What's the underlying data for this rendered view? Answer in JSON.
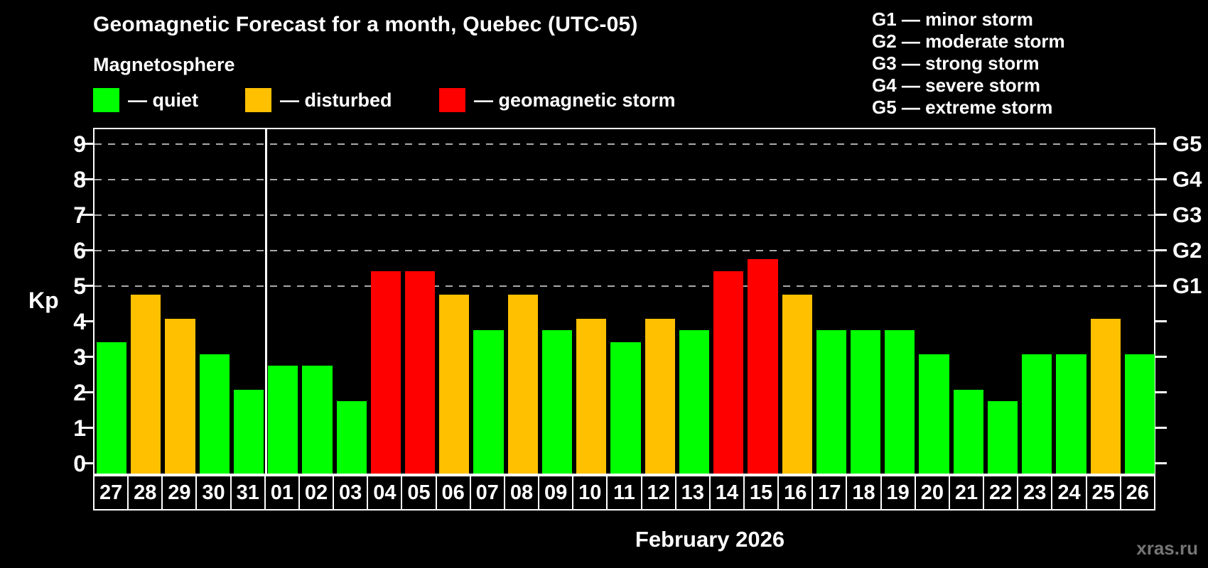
{
  "header": {
    "title": "Geomagnetic Forecast for a month, Quebec (UTC-05)",
    "subtitle": "Magnetosphere"
  },
  "legend": {
    "items": [
      {
        "name": "quiet",
        "label": "— quiet",
        "color": "#00ff00"
      },
      {
        "name": "disturbed",
        "label": "— disturbed",
        "color": "#ffc000"
      },
      {
        "name": "storm",
        "label": "— geomagnetic storm",
        "color": "#ff0000"
      }
    ]
  },
  "storm_scale_legend": {
    "items": [
      "G1 — minor storm",
      "G2 — moderate storm",
      "G3 — strong storm",
      "G4 — severe storm",
      "G5 — extreme storm"
    ]
  },
  "footer": {
    "month_label": "February 2026",
    "watermark": "xras.ru"
  },
  "chart_data": {
    "type": "bar",
    "title": "Geomagnetic Forecast for a month, Quebec (UTC-05)",
    "ylabel": "Kp",
    "xlabel": "February 2026",
    "ylim": [
      -0.4,
      9.4
    ],
    "yticks": [
      0,
      1,
      2,
      3,
      4,
      5,
      6,
      7,
      8,
      9
    ],
    "grid": "dashed horizontal lines at Kp 5-9 (G1-G5 levels)",
    "gridlines_kp": [
      5,
      6,
      7,
      8,
      9
    ],
    "right_axis_labels": [
      {
        "label": "G1",
        "kp": 5
      },
      {
        "label": "G2",
        "kp": 6
      },
      {
        "label": "G3",
        "kp": 7
      },
      {
        "label": "G4",
        "kp": 8
      },
      {
        "label": "G5",
        "kp": 9
      }
    ],
    "month_separator_after_index": 4,
    "categories": [
      "27",
      "28",
      "29",
      "30",
      "31",
      "01",
      "02",
      "03",
      "04",
      "05",
      "06",
      "07",
      "08",
      "09",
      "10",
      "11",
      "12",
      "13",
      "14",
      "15",
      "16",
      "17",
      "18",
      "19",
      "20",
      "21",
      "22",
      "23",
      "24",
      "25",
      "26"
    ],
    "values": [
      3.33,
      4.67,
      4,
      3,
      2,
      2.67,
      2.67,
      1.67,
      5.33,
      5.33,
      4.67,
      3.67,
      4.67,
      3.67,
      4,
      3.33,
      4,
      3.67,
      5.33,
      5.67,
      4.67,
      3.67,
      3.67,
      3.67,
      3,
      2,
      1.67,
      3,
      3,
      4,
      3
    ],
    "statuses": [
      "quiet",
      "disturbed",
      "disturbed",
      "quiet",
      "quiet",
      "quiet",
      "quiet",
      "quiet",
      "storm",
      "storm",
      "disturbed",
      "quiet",
      "disturbed",
      "quiet",
      "disturbed",
      "quiet",
      "disturbed",
      "quiet",
      "storm",
      "storm",
      "disturbed",
      "quiet",
      "quiet",
      "quiet",
      "quiet",
      "quiet",
      "quiet",
      "quiet",
      "quiet",
      "disturbed",
      "quiet"
    ],
    "status_colors": {
      "quiet": "#00ff00",
      "disturbed": "#ffc000",
      "storm": "#ff0000"
    },
    "background": "#000000",
    "axis_color": "#ffffff",
    "gridline_color": "#aaaaaa",
    "legend_position": "top"
  }
}
